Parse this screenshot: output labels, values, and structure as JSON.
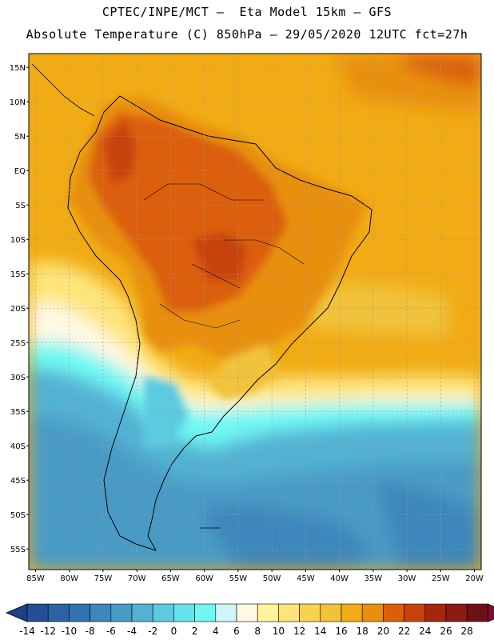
{
  "header": {
    "line1": "CPTEC/INPE/MCT –  Eta Model 15km – GFS",
    "line2": "Absolute Temperature (C) 850hPa – 29/05/2020 12UTC fct=27h"
  },
  "map": {
    "lon_range": [
      -86,
      -19
    ],
    "lat_range": [
      -58,
      17
    ],
    "lat_ticks": [
      {
        "value": 15,
        "label": "15N"
      },
      {
        "value": 10,
        "label": "10N"
      },
      {
        "value": 5,
        "label": "5N"
      },
      {
        "value": 0,
        "label": "EQ"
      },
      {
        "value": -5,
        "label": "5S"
      },
      {
        "value": -10,
        "label": "10S"
      },
      {
        "value": -15,
        "label": "15S"
      },
      {
        "value": -20,
        "label": "20S"
      },
      {
        "value": -25,
        "label": "25S"
      },
      {
        "value": -30,
        "label": "30S"
      },
      {
        "value": -35,
        "label": "35S"
      },
      {
        "value": -40,
        "label": "40S"
      },
      {
        "value": -45,
        "label": "45S"
      },
      {
        "value": -50,
        "label": "50S"
      },
      {
        "value": -55,
        "label": "55S"
      }
    ],
    "lon_ticks": [
      {
        "value": -85,
        "label": "85W"
      },
      {
        "value": -80,
        "label": "80W"
      },
      {
        "value": -75,
        "label": "75W"
      },
      {
        "value": -70,
        "label": "70W"
      },
      {
        "value": -65,
        "label": "65W"
      },
      {
        "value": -60,
        "label": "60W"
      },
      {
        "value": -55,
        "label": "55W"
      },
      {
        "value": -50,
        "label": "50W"
      },
      {
        "value": -45,
        "label": "45W"
      },
      {
        "value": -40,
        "label": "40W"
      },
      {
        "value": -35,
        "label": "35W"
      },
      {
        "value": -30,
        "label": "30W"
      },
      {
        "value": -25,
        "label": "25W"
      },
      {
        "value": -20,
        "label": "20W"
      }
    ]
  },
  "colorbar": {
    "labels": [
      "-14",
      "-12",
      "-10",
      "-8",
      "-6",
      "-4",
      "-2",
      "0",
      "2",
      "4",
      "6",
      "8",
      "10",
      "12",
      "14",
      "16",
      "18",
      "20",
      "22",
      "24",
      "26",
      "28"
    ],
    "colors": [
      "#1f3f8a",
      "#234f97",
      "#2a62a4",
      "#3174b0",
      "#3d87bc",
      "#489bc6",
      "#52b2d3",
      "#5ccbe0",
      "#66e3ea",
      "#6ff7f4",
      "#cef5f8",
      "#fff8e4",
      "#fff49a",
      "#fde57a",
      "#f8d352",
      "#f1c23a",
      "#f1ab14",
      "#e8900c",
      "#dc5f08",
      "#c7420a",
      "#a8260c",
      "#8b1a12",
      "#6b1217",
      "#820c31"
    ]
  }
}
